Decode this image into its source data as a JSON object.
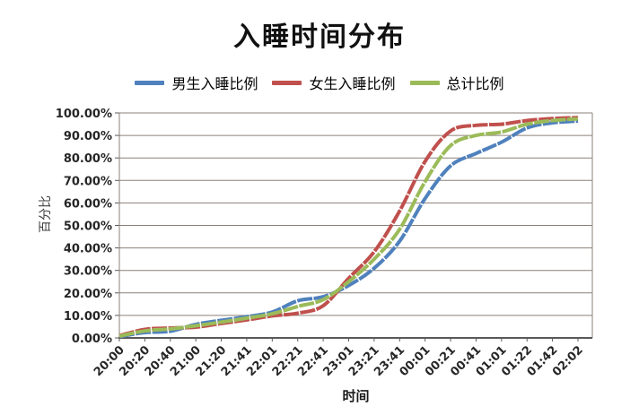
{
  "title": "入睡时间分布",
  "legend": [
    {
      "label": "男生入睡比例",
      "color": "#4F81BD"
    },
    {
      "label": "女生入睡比例",
      "color": "#C0504D"
    },
    {
      "label": "总计比例",
      "color": "#9BBB59"
    }
  ],
  "colors": {
    "male_line": "#4F81BD",
    "female_line": "#C0504D",
    "total_line": "#9BBB59",
    "gridline": "#8B8178",
    "axis_line": "#595959",
    "tick_text": "#262626"
  },
  "chart_data": {
    "type": "line",
    "title": "入睡时间分布",
    "xlabel": "时间",
    "ylabel": "百分比",
    "x": [
      "20:00",
      "20:20",
      "20:40",
      "21:00",
      "21:20",
      "21:41",
      "22:01",
      "22:21",
      "22:41",
      "23:01",
      "23:21",
      "23:41",
      "00:01",
      "00:21",
      "00:41",
      "01:01",
      "01:22",
      "01:42",
      "02:02"
    ],
    "series": [
      {
        "name": "男生入睡比例",
        "color": "#4F81BD",
        "values": [
          0.6,
          2.4,
          3.0,
          6.0,
          7.8,
          9.4,
          11.5,
          16.5,
          18.3,
          23.3,
          31.0,
          43.0,
          62.0,
          76.5,
          82.0,
          87.0,
          93.3,
          95.6,
          96.4
        ]
      },
      {
        "name": "女生入睡比例",
        "color": "#C0504D",
        "values": [
          1.0,
          3.8,
          4.4,
          4.8,
          6.4,
          8.0,
          9.8,
          11.0,
          14.3,
          26.5,
          38.3,
          56.4,
          78.5,
          92.0,
          94.5,
          95.0,
          96.6,
          97.5,
          97.9
        ]
      },
      {
        "name": "总计比例",
        "color": "#9BBB59",
        "values": [
          0.8,
          3.1,
          4.0,
          5.4,
          7.0,
          8.8,
          10.7,
          14.0,
          17.0,
          25.0,
          35.0,
          48.3,
          69.5,
          85.5,
          90.0,
          91.5,
          95.0,
          96.6,
          97.4
        ]
      }
    ],
    "y_ticks": [
      "0.00%",
      "10.00%",
      "20.00%",
      "30.00%",
      "40.00%",
      "50.00%",
      "60.00%",
      "70.00%",
      "80.00%",
      "90.00%",
      "100.00%"
    ],
    "ylim": [
      0,
      100
    ],
    "grid": true,
    "legend_position": "top"
  }
}
